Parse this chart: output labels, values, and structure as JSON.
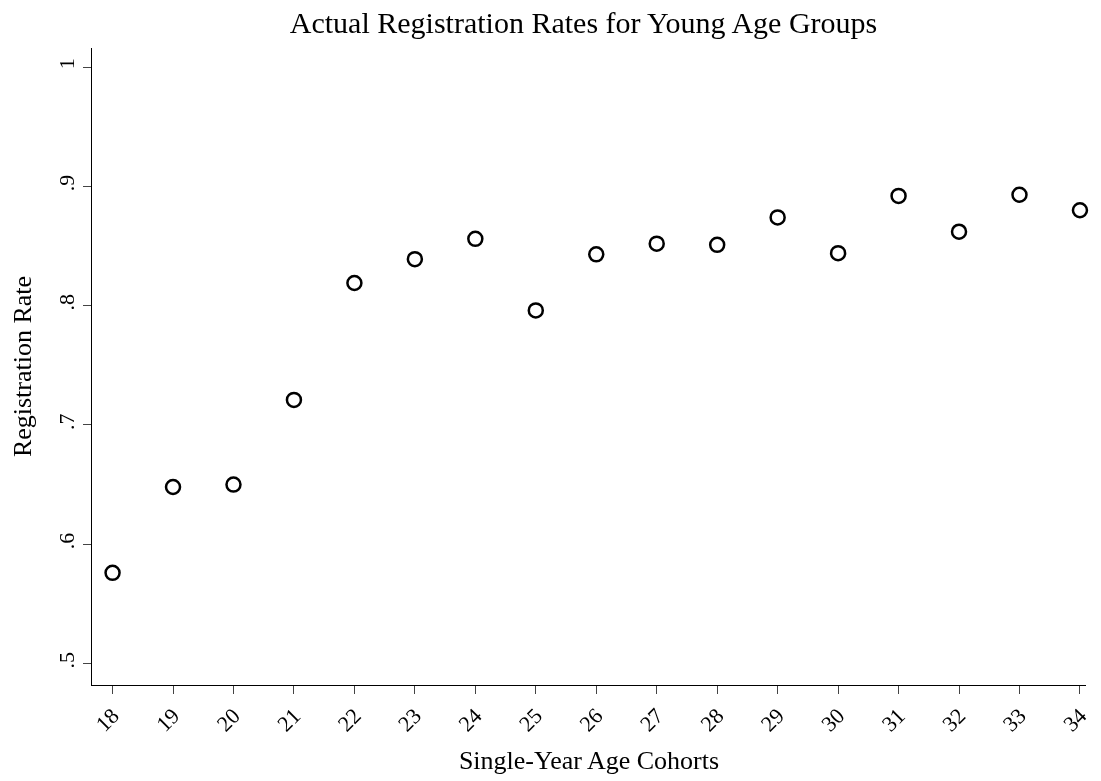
{
  "chart_data": {
    "type": "scatter",
    "title": "Actual Registration Rates for Young Age Groups",
    "xlabel": "Single-Year Age Cohorts",
    "ylabel": "Registration Rate",
    "x": [
      18,
      19,
      20,
      21,
      22,
      23,
      24,
      25,
      26,
      27,
      28,
      29,
      30,
      31,
      32,
      33,
      34
    ],
    "series": [
      {
        "color": "#000000",
        "values": [
          0.576,
          0.648,
          0.65,
          0.721,
          0.819,
          0.839,
          0.856,
          0.796,
          0.843,
          0.852,
          0.851,
          0.874,
          0.844,
          0.892,
          0.862,
          0.893,
          0.88
        ]
      }
    ],
    "xlim": [
      17.66,
      34.1
    ],
    "xticks": [
      18,
      19,
      20,
      21,
      22,
      23,
      24,
      25,
      26,
      27,
      28,
      29,
      30,
      31,
      32,
      33,
      34
    ],
    "ylim": [
      0.482,
      1.016
    ],
    "yticks": [
      {
        "value": 0.5,
        "label": ".5"
      },
      {
        "value": 0.6,
        "label": ".6"
      },
      {
        "value": 0.7,
        "label": ".7"
      },
      {
        "value": 0.8,
        "label": ".8"
      },
      {
        "value": 0.9,
        "label": ".9"
      },
      1
    ],
    "marker": "circle"
  }
}
